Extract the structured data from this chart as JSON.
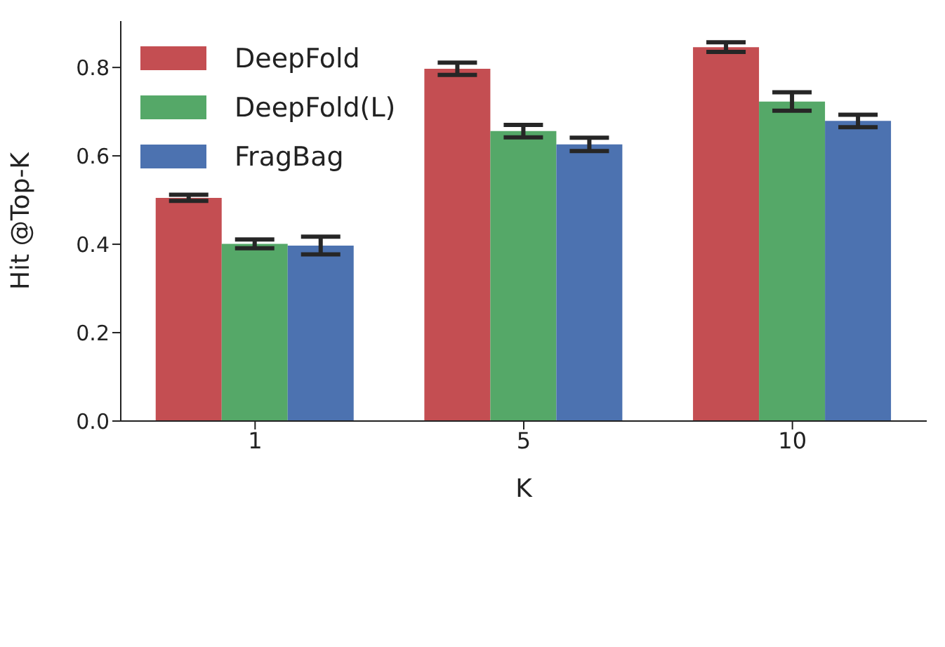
{
  "chart_data": {
    "type": "bar",
    "xlabel": "K",
    "ylabel": "Hit @Top-K",
    "categories": [
      "1",
      "5",
      "10"
    ],
    "series": [
      {
        "name": "DeepFold",
        "color": "#c44e52",
        "values": [
          0.505,
          0.797,
          0.846
        ],
        "errors": [
          0.007,
          0.014,
          0.011
        ]
      },
      {
        "name": "DeepFold(L)",
        "color": "#55a868",
        "values": [
          0.401,
          0.656,
          0.723
        ],
        "errors": [
          0.01,
          0.014,
          0.021
        ]
      },
      {
        "name": "FragBag",
        "color": "#4c72b0",
        "values": [
          0.397,
          0.626,
          0.679
        ],
        "errors": [
          0.02,
          0.015,
          0.014
        ]
      }
    ],
    "ylim": [
      0,
      0.905
    ],
    "yticks": [
      {
        "value": 0,
        "label": "0.0"
      },
      {
        "value": 0.2,
        "label": "0.2"
      },
      {
        "value": 0.4,
        "label": "0.4"
      },
      {
        "value": 0.6,
        "label": "0.6"
      },
      {
        "value": 0.8,
        "label": "0.8"
      }
    ],
    "grid": false,
    "legend": "top left"
  }
}
